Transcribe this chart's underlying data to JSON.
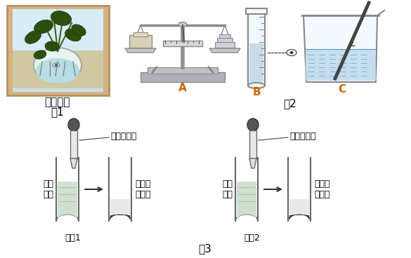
{
  "bg_color": "#ffffff",
  "title_fig1": "无土栽培",
  "label_fig1": "图1",
  "label_fig2": "图2",
  "label_fig3": "图3",
  "label_A": "A",
  "label_B": "B",
  "label_C": "C",
  "label_exp1": "实验1",
  "label_exp2": "实验2",
  "text_carbonate": "碳酸钠溶液",
  "text_silver_nitrate": "硝酸银溶液",
  "text_original": "原营\n养液",
  "text_white_ppt": "生成白\n色沉淀",
  "font_color_title": "#000000",
  "font_color_orange": "#cc6600",
  "line_color": "#555555",
  "arrow_color": "#333333",
  "fig_width": 5.85,
  "fig_height": 3.68,
  "dpi": 100
}
